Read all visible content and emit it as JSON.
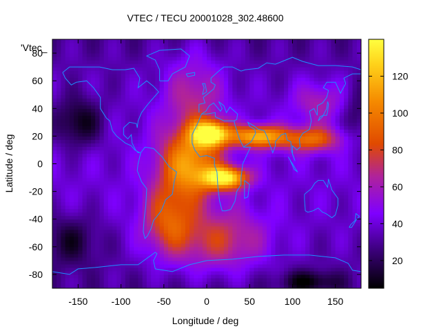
{
  "chart_data": {
    "type": "heatmap",
    "title": "VTEC / TECU 20001028_302.48600",
    "xlabel": "Longitude / deg",
    "ylabel": "Latitude / deg",
    "xlim": [
      -180,
      180
    ],
    "ylim": [
      -90,
      90
    ],
    "x_ticks": [
      -150,
      -100,
      -50,
      0,
      50,
      100,
      150
    ],
    "y_ticks": [
      -80,
      -60,
      -40,
      -20,
      0,
      20,
      40,
      60,
      80
    ],
    "colorbar": {
      "min": 5,
      "max": 140,
      "ticks": [
        20,
        40,
        60,
        80,
        100,
        120
      ]
    },
    "palette": [
      "#000000",
      "#3a0078",
      "#7f00ff",
      "#b0239a",
      "#e04a00",
      "#f58a00",
      "#ffd21a",
      "#ffff40"
    ],
    "coastline_color": "#1e90ff",
    "legend": {
      "label": "'Vtec_",
      "placement": "top-left"
    },
    "grid": false,
    "features": [
      {
        "lon": 5,
        "lat": 24,
        "tec": 135
      },
      {
        "lon": 25,
        "lat": -10,
        "tec": 130
      },
      {
        "lon": 55,
        "lat": 20,
        "tec": 120
      },
      {
        "lon": 120,
        "lat": 18,
        "tec": 95
      },
      {
        "lon": -20,
        "lat": 0,
        "tec": 115
      },
      {
        "lon": -40,
        "lat": -40,
        "tec": 95
      },
      {
        "lon": 20,
        "lat": -60,
        "tec": 80
      },
      {
        "lon": -150,
        "lat": 30,
        "tec": 5
      },
      {
        "lon": -140,
        "lat": -60,
        "tec": 35
      }
    ]
  }
}
